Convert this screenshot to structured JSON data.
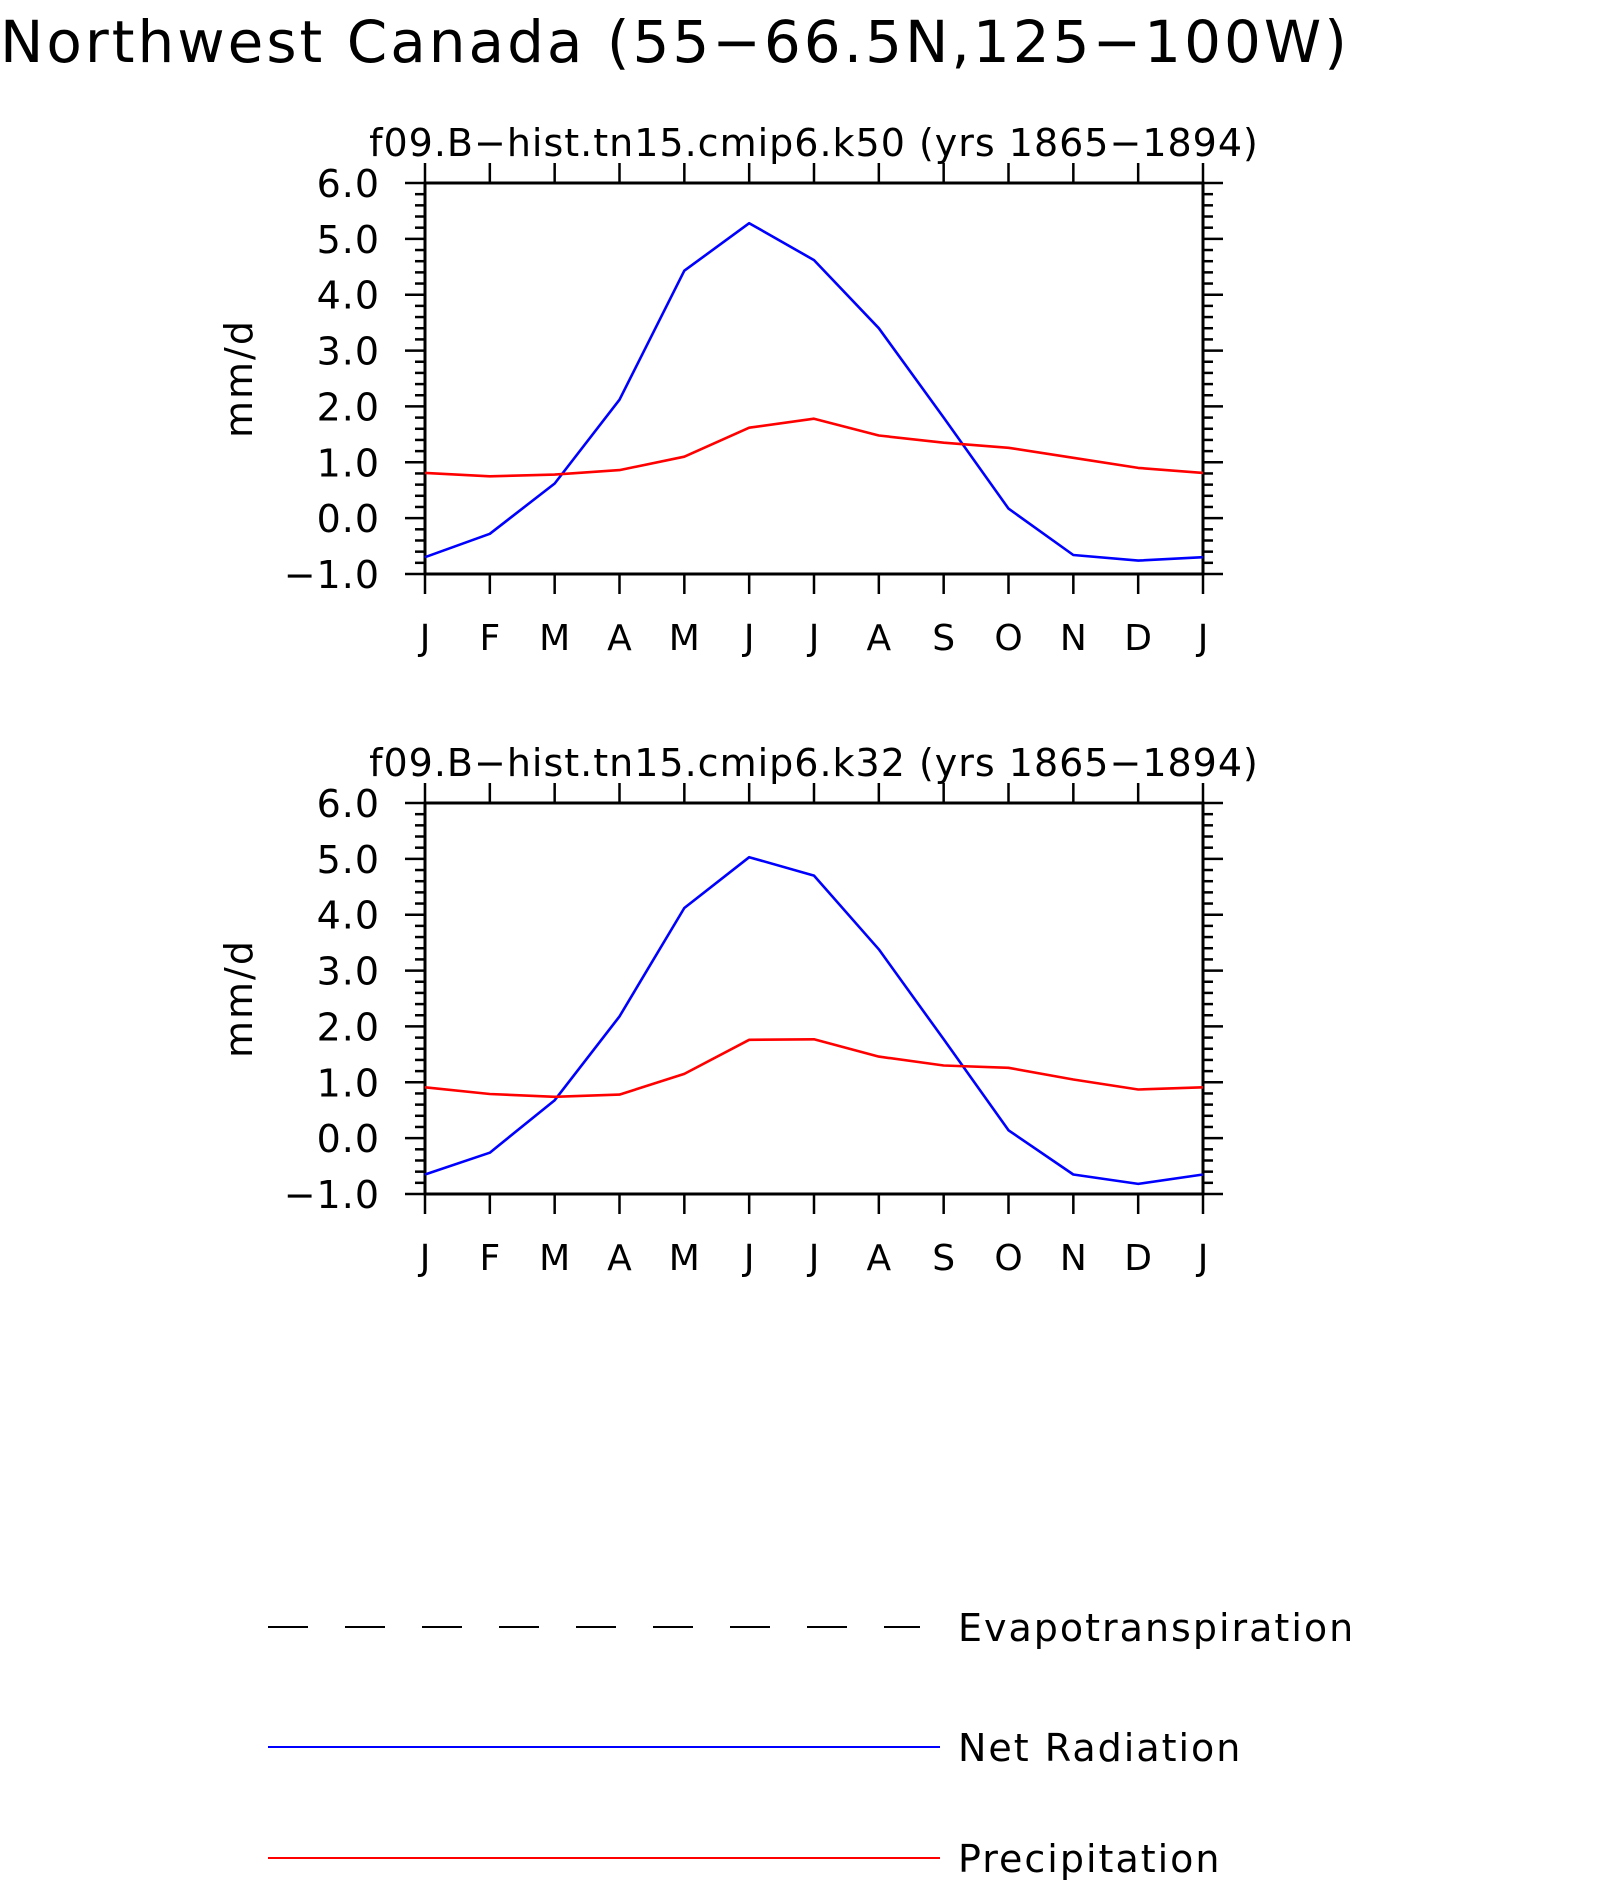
{
  "page_title": "Northwest Canada (55−66.5N,125−100W)",
  "colors": {
    "net_radiation": "#0000ff",
    "precipitation": "#ff0000",
    "evapotranspiration": "#000000",
    "axis": "#000000"
  },
  "chart_data": [
    {
      "type": "line",
      "title": "f09.B−hist.tn15.cmip6.k50 (yrs 1865−1894)",
      "ylabel": "mm/d",
      "xlabel": "",
      "categories": [
        "J",
        "F",
        "M",
        "A",
        "M",
        "J",
        "J",
        "A",
        "S",
        "O",
        "N",
        "D",
        "J"
      ],
      "ylim": [
        -1.0,
        6.0
      ],
      "yticks": [
        "−1.0",
        "0.0",
        "1.0",
        "2.0",
        "3.0",
        "4.0",
        "5.0",
        "6.0"
      ],
      "ytick_values": [
        -1,
        0,
        1,
        2,
        3,
        4,
        5,
        6
      ],
      "grid": false,
      "series": [
        {
          "name": "Net Radiation",
          "color": "#0000ff",
          "values": [
            -0.7,
            -0.28,
            0.62,
            2.12,
            4.43,
            5.28,
            4.62,
            3.4,
            1.8,
            0.17,
            -0.66,
            -0.76,
            -0.7
          ]
        },
        {
          "name": "Precipitation",
          "color": "#ff0000",
          "values": [
            0.81,
            0.75,
            0.78,
            0.86,
            1.1,
            1.62,
            1.78,
            1.48,
            1.35,
            1.26,
            1.08,
            0.9,
            0.81
          ]
        }
      ]
    },
    {
      "type": "line",
      "title": "f09.B−hist.tn15.cmip6.k32 (yrs 1865−1894)",
      "ylabel": "mm/d",
      "xlabel": "",
      "categories": [
        "J",
        "F",
        "M",
        "A",
        "M",
        "J",
        "J",
        "A",
        "S",
        "O",
        "N",
        "D",
        "J"
      ],
      "ylim": [
        -1.0,
        6.0
      ],
      "yticks": [
        "−1.0",
        "0.0",
        "1.0",
        "2.0",
        "3.0",
        "4.0",
        "5.0",
        "6.0"
      ],
      "ytick_values": [
        -1,
        0,
        1,
        2,
        3,
        4,
        5,
        6
      ],
      "grid": false,
      "series": [
        {
          "name": "Net Radiation",
          "color": "#0000ff",
          "values": [
            -0.65,
            -0.26,
            0.68,
            2.18,
            4.12,
            5.03,
            4.7,
            3.38,
            1.77,
            0.14,
            -0.65,
            -0.82,
            -0.65
          ]
        },
        {
          "name": "Precipitation",
          "color": "#ff0000",
          "values": [
            0.91,
            0.79,
            0.74,
            0.78,
            1.15,
            1.76,
            1.77,
            1.46,
            1.3,
            1.26,
            1.05,
            0.87,
            0.91
          ]
        }
      ]
    }
  ],
  "legend": {
    "placement": "bottom",
    "entries": [
      {
        "label": "Evapotranspiration",
        "color": "#000000",
        "style": "dashed"
      },
      {
        "label": "Net Radiation",
        "color": "#0000ff",
        "style": "solid"
      },
      {
        "label": "Precipitation",
        "color": "#ff0000",
        "style": "solid"
      }
    ]
  }
}
